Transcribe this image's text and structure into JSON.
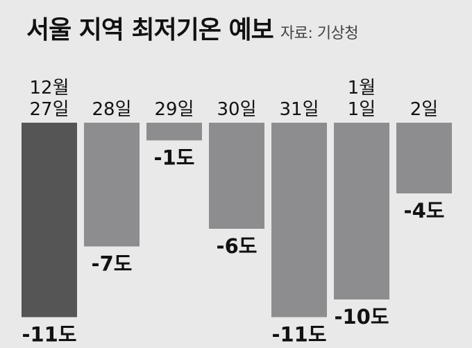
{
  "header": {
    "title": "서울 지역 최저기온 예보",
    "source": "자료: 기상청"
  },
  "colors": {
    "background": "#e9e9ea",
    "highlight_bar": "#555556",
    "bar": "#8d8d8f",
    "text": "#111111"
  },
  "chart_data": {
    "type": "bar",
    "title": "서울 지역 최저기온 예보",
    "xlabel": "",
    "ylabel": "",
    "unit": "도",
    "grid": false,
    "categories": [
      [
        "12월",
        "27일"
      ],
      [
        "28일"
      ],
      [
        "29일"
      ],
      [
        "30일"
      ],
      [
        "31일"
      ],
      [
        "1월",
        "1일"
      ],
      [
        "2일"
      ]
    ],
    "values": [
      -11,
      -7,
      -1,
      -6,
      -11,
      -10,
      -4
    ],
    "value_labels": [
      "-11도",
      "-7도",
      "-1도",
      "-6도",
      "-11도",
      "-10도",
      "-4도"
    ],
    "highlight_index": 0,
    "ylim": [
      -12,
      0
    ]
  }
}
